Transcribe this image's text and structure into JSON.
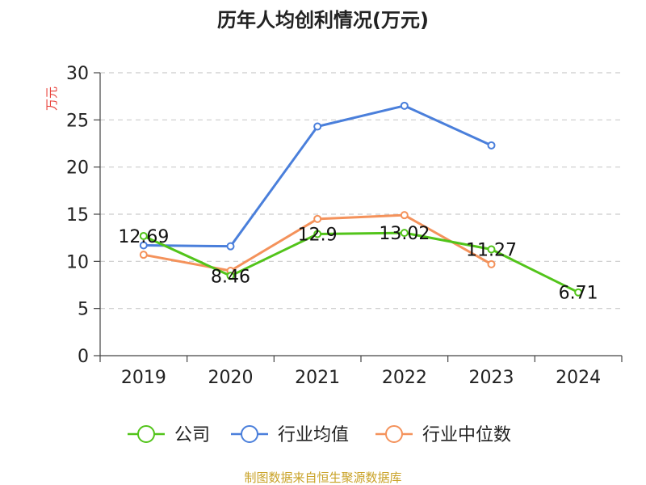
{
  "chart_data": {
    "type": "line",
    "title": "历年人均创利情况(万元)",
    "ylabel": "万元",
    "xlabel": "",
    "categories": [
      "2019",
      "2020",
      "2021",
      "2022",
      "2023",
      "2024"
    ],
    "ylim": [
      0,
      30
    ],
    "yticks": [
      0,
      5,
      10,
      15,
      20,
      25,
      30
    ],
    "grid": true,
    "legend_position": "bottom",
    "series": [
      {
        "name": "公司",
        "color": "#52c41a",
        "values": [
          12.69,
          8.46,
          12.9,
          13.02,
          11.27,
          6.71
        ],
        "labels": [
          "12.69",
          "8.46",
          "12.9",
          "13.02",
          "11.27",
          "6.71"
        ]
      },
      {
        "name": "行业均值",
        "color": "#4a7fdb",
        "values": [
          11.7,
          11.6,
          24.3,
          26.5,
          22.3,
          null
        ]
      },
      {
        "name": "行业中位数",
        "color": "#f4925b",
        "values": [
          10.7,
          9.0,
          14.5,
          14.9,
          9.7,
          null
        ]
      }
    ],
    "source": "制图数据来自恒生聚源数据库",
    "source_color": "#c9a227",
    "ylabel_color": "#e8413a"
  }
}
